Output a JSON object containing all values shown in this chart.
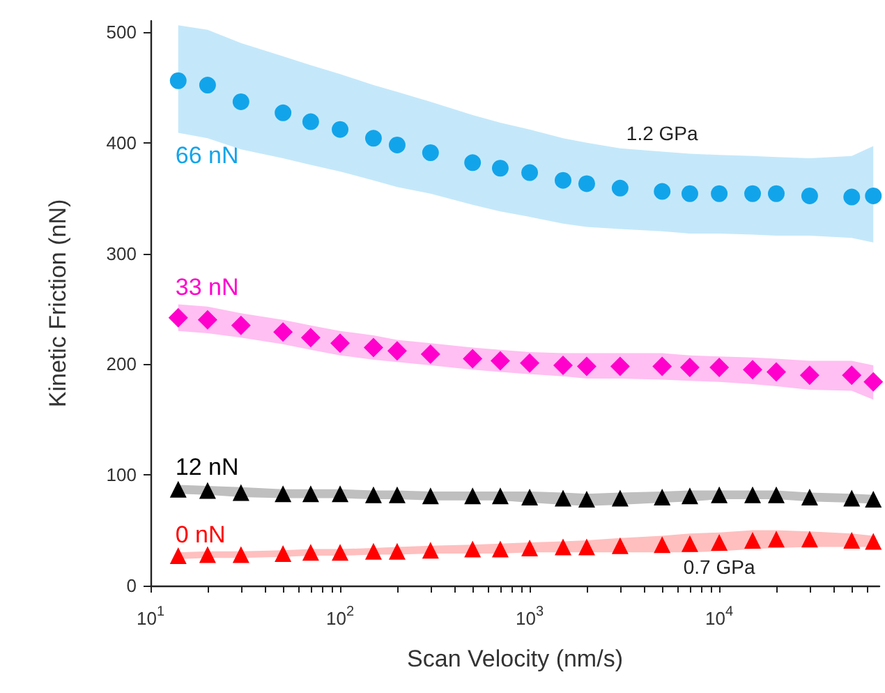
{
  "chart_data": {
    "type": "scatter",
    "xlabel": "Scan Velocity (nm/s)",
    "ylabel": "Kinetic Friction (nN)",
    "log": "x",
    "xlim": [
      10,
      70000
    ],
    "xticks": [
      {
        "value": 10,
        "label": "10$^{1}$"
      },
      {
        "value": 20,
        "label": null
      },
      {
        "value": 30,
        "label": null
      },
      {
        "value": 40,
        "label": null
      },
      {
        "value": 50,
        "label": null
      },
      {
        "value": 60,
        "label": null
      },
      {
        "value": 70,
        "label": null
      },
      {
        "value": 80,
        "label": null
      },
      {
        "value": 90,
        "label": null
      },
      {
        "value": 100,
        "label": "10$^{2}$"
      },
      {
        "value": 200,
        "label": null
      },
      {
        "value": 300,
        "label": null
      },
      {
        "value": 400,
        "label": null
      },
      {
        "value": 500,
        "label": null
      },
      {
        "value": 600,
        "label": null
      },
      {
        "value": 700,
        "label": null
      },
      {
        "value": 800,
        "label": null
      },
      {
        "value": 900,
        "label": null
      },
      {
        "value": 1000,
        "label": "10$^{3}$"
      },
      {
        "value": 2000,
        "label": null
      },
      {
        "value": 3000,
        "label": null
      },
      {
        "value": 4000,
        "label": null
      },
      {
        "value": 5000,
        "label": null
      },
      {
        "value": 6000,
        "label": null
      },
      {
        "value": 7000,
        "label": null
      },
      {
        "value": 8000,
        "label": null
      },
      {
        "value": 9000,
        "label": null
      },
      {
        "value": 10000,
        "label": "10$^{4}$"
      },
      {
        "value": 20000,
        "label": null
      },
      {
        "value": 30000,
        "label": null
      },
      {
        "value": 40000,
        "label": null
      },
      {
        "value": 50000,
        "label": null
      },
      {
        "value": 60000,
        "label": null
      }
    ],
    "ylim": [
      0,
      510
    ],
    "yticks": [
      0,
      100,
      200,
      300,
      400,
      500
    ],
    "grid": false,
    "legend": false,
    "x": [
      14,
      20,
      30,
      50,
      70,
      100,
      150,
      200,
      300,
      500,
      700,
      1000,
      1500,
      2000,
      3000,
      5000,
      7000,
      10000,
      15000,
      20000,
      30000,
      50000,
      65000
    ],
    "series": [
      {
        "name": "66 nN",
        "color": "#12a4ea",
        "marker": "circle",
        "values": [
          456,
          452,
          437,
          427,
          419,
          412,
          404,
          398,
          391,
          382,
          377,
          373,
          366,
          363,
          359,
          356,
          354,
          354,
          354,
          354,
          352,
          351,
          352
        ],
        "upper": [
          506,
          502,
          490,
          478,
          470,
          462,
          452,
          446,
          437,
          425,
          418,
          412,
          404,
          400,
          395,
          392,
          390,
          389,
          388,
          387,
          386,
          388,
          397
        ],
        "lower": [
          409,
          404,
          394,
          386,
          380,
          374,
          366,
          360,
          354,
          344,
          338,
          333,
          327,
          324,
          322,
          320,
          318,
          318,
          317,
          316,
          316,
          314,
          310
        ]
      },
      {
        "name": "33 nN",
        "color": "#ff00cc",
        "marker": "diamond",
        "values": [
          242,
          240,
          235,
          229,
          224,
          219,
          215,
          212,
          209,
          205,
          203,
          201,
          199,
          198,
          198,
          198,
          197,
          197,
          195,
          193,
          190,
          190,
          184
        ],
        "upper": [
          254,
          252,
          246,
          240,
          235,
          230,
          226,
          222,
          219,
          215,
          213,
          211,
          210,
          210,
          210,
          210,
          208,
          207,
          206,
          205,
          203,
          203,
          199
        ],
        "lower": [
          230,
          228,
          224,
          218,
          213,
          208,
          204,
          202,
          199,
          195,
          193,
          191,
          189,
          187,
          187,
          186,
          185,
          184,
          182,
          180,
          177,
          176,
          168
        ]
      },
      {
        "name": "12 nN",
        "color": "#000000",
        "marker": "triangle",
        "values": [
          87,
          86,
          84,
          83,
          83,
          83,
          82,
          82,
          81,
          81,
          81,
          80,
          79,
          78,
          79,
          80,
          81,
          82,
          82,
          82,
          80,
          79,
          78
        ],
        "upper": [
          91,
          90,
          89,
          87,
          87,
          87,
          86,
          86,
          85,
          85,
          85,
          85,
          84,
          83,
          84,
          85,
          86,
          86,
          86,
          86,
          84,
          83,
          82
        ],
        "lower": [
          83,
          82,
          80,
          79,
          79,
          79,
          78,
          78,
          77,
          77,
          77,
          75,
          73,
          72,
          73,
          75,
          76,
          78,
          78,
          78,
          76,
          75,
          74
        ]
      },
      {
        "name": "0 nN",
        "color": "#ff0000",
        "marker": "triangle",
        "values": [
          27,
          28,
          28,
          29,
          30,
          30,
          31,
          31,
          32,
          33,
          33,
          34,
          35,
          35,
          36,
          37,
          38,
          39,
          41,
          42,
          42,
          41,
          40
        ],
        "upper": [
          30,
          31,
          31,
          32,
          33,
          33,
          34,
          35,
          36,
          37,
          38,
          39,
          40,
          41,
          43,
          45,
          47,
          48,
          50,
          50,
          49,
          47,
          45
        ],
        "lower": [
          24,
          25,
          25,
          26,
          27,
          27,
          28,
          28,
          29,
          29,
          29,
          30,
          30,
          30,
          30,
          30,
          30,
          31,
          33,
          34,
          35,
          35,
          35
        ]
      }
    ],
    "annotations": [
      "1.2 GPa",
      "0.7 GPa"
    ]
  }
}
